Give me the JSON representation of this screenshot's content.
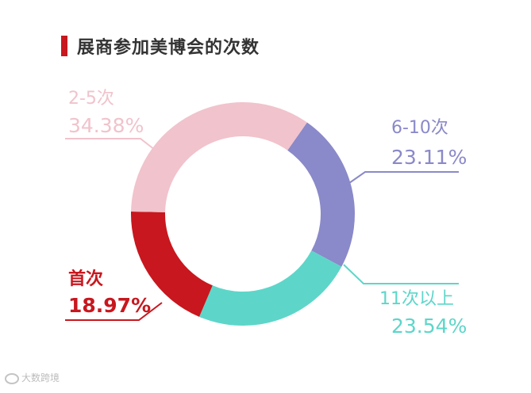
{
  "title": "展商参加美博会的次数",
  "chart_data": {
    "type": "pie",
    "donut": true,
    "title": "展商参加美博会的次数",
    "start_angle_deg": 35,
    "slices": [
      {
        "name": "6-10次",
        "value": 23.11,
        "label": "23.11%",
        "color": "#8a89c9",
        "bold_label": false
      },
      {
        "name": "11次以上",
        "value": 23.54,
        "label": "23.54%",
        "color": "#5dd6c9",
        "bold_label": false
      },
      {
        "name": "首次",
        "value": 18.97,
        "label": "18.97%",
        "color": "#c8171e",
        "bold_label": true
      },
      {
        "name": "2-5次",
        "value": 34.38,
        "label": "34.38%",
        "color": "#f1c3cc",
        "bold_label": false
      }
    ]
  },
  "watermark": {
    "text": "大数跨境"
  }
}
